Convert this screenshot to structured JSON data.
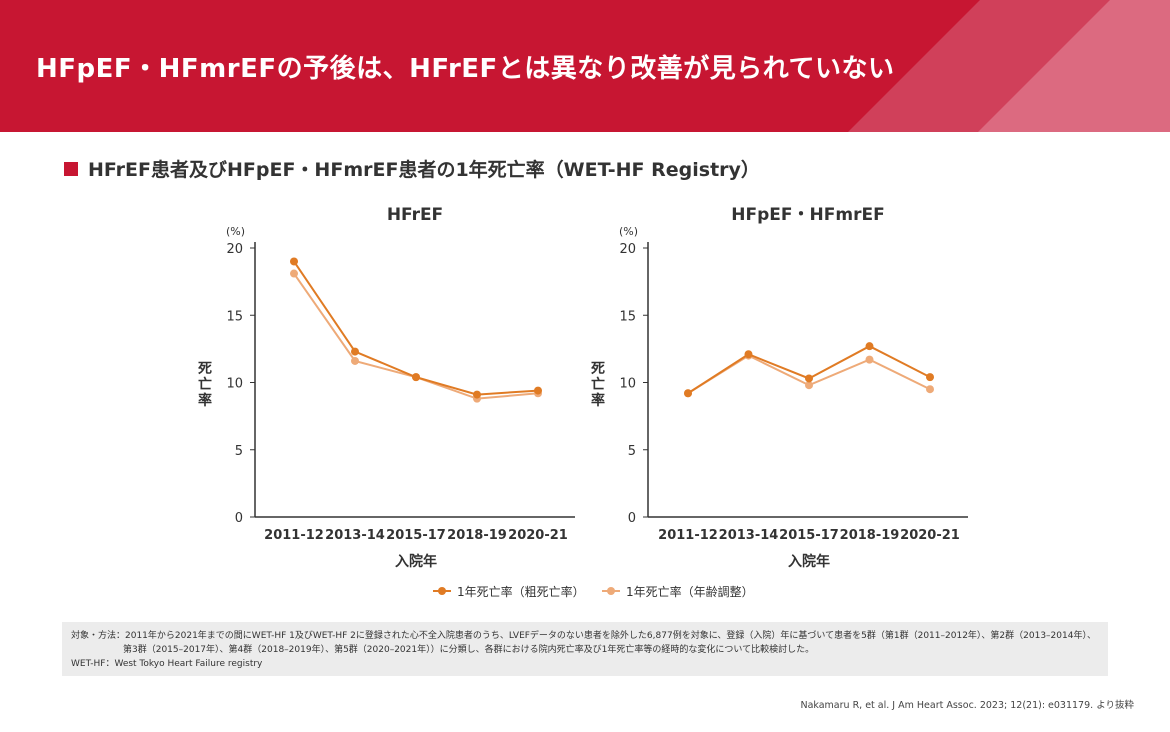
{
  "header": {
    "title": "HFpEF・HFmrEFの予後は、HFrEFとは異なり改善が見られていない",
    "brand_color": "#c71632"
  },
  "section_title": "HFrEF患者及びHFpEF・HFmrEF患者の1年死亡率（WET-HF Registry）",
  "chart_data": [
    {
      "type": "line",
      "title": "HFrEF",
      "xlabel": "入院年",
      "ylabel": "死亡率",
      "yunit": "(%)",
      "ylim": [
        0,
        20
      ],
      "yticks": [
        0,
        5,
        10,
        15,
        20
      ],
      "categories": [
        "2011-12",
        "2013-14",
        "2015-17",
        "2018-19",
        "2020-21"
      ],
      "series": [
        {
          "name": "1年死亡率（粗死亡率）",
          "color": "#e07b24",
          "values": [
            19.0,
            12.3,
            10.4,
            9.1,
            9.4
          ]
        },
        {
          "name": "1年死亡率（年齢調整）",
          "color": "#eeaa78",
          "values": [
            18.1,
            11.6,
            10.4,
            8.8,
            9.2
          ]
        }
      ]
    },
    {
      "type": "line",
      "title": "HFpEF・HFmrEF",
      "xlabel": "入院年",
      "ylabel": "死亡率",
      "yunit": "(%)",
      "ylim": [
        0,
        20
      ],
      "yticks": [
        0,
        5,
        10,
        15,
        20
      ],
      "categories": [
        "2011-12",
        "2013-14",
        "2015-17",
        "2018-19",
        "2020-21"
      ],
      "series": [
        {
          "name": "1年死亡率（粗死亡率）",
          "color": "#e07b24",
          "values": [
            9.2,
            12.1,
            10.3,
            12.7,
            10.4
          ]
        },
        {
          "name": "1年死亡率（年齢調整）",
          "color": "#eeaa78",
          "values": [
            9.2,
            12.0,
            9.8,
            11.7,
            9.5
          ]
        }
      ]
    }
  ],
  "legend": {
    "placement": "bottom",
    "items": [
      "1年死亡率（粗死亡率）",
      "1年死亡率（年齢調整）"
    ]
  },
  "notes": {
    "line1": "対象・方法：2011年から2021年までの間にWET-HF 1及びWET-HF 2に登録された心不全入院患者のうち、LVEFデータのない患者を除外した6,877例を対象に、登録（入院）年に基づいて患者を5群（第1群（2011–2012年）、第2群（2013–2014年）、",
    "line2": "第3群（2015–2017年）、第4群（2018–2019年）、第5群（2020–2021年））に分類し、各群における院内死亡率及び1年死亡率等の経時的な変化について比較検討した。",
    "line3": "WET-HF：West Tokyo Heart Failure registry"
  },
  "citation": "Nakamaru R, et al. J Am Heart Assoc. 2023; 12(21): e031179. より抜粋"
}
